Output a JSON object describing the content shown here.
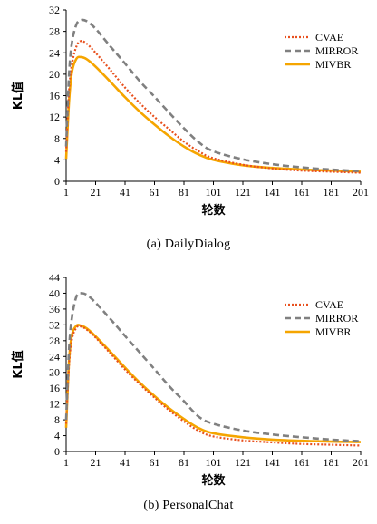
{
  "chart_data": [
    {
      "type": "line",
      "caption": "(a) DailyDialog",
      "xlabel": "轮数",
      "ylabel": "KL值",
      "x_ticks": [
        "1",
        "21",
        "41",
        "61",
        "81",
        "101",
        "121",
        "141",
        "161",
        "181",
        "201"
      ],
      "y_ticks": [
        "0",
        "4",
        "8",
        "12",
        "16",
        "20",
        "24",
        "28",
        "32"
      ],
      "xlim": [
        1,
        201
      ],
      "ylim": [
        0,
        32
      ],
      "legend_position": "top-right",
      "series": [
        {
          "name": "CVAE",
          "color": "#e8501e",
          "style": "dotted",
          "x": [
            1,
            3,
            5,
            8,
            11,
            15,
            21,
            31,
            41,
            51,
            61,
            71,
            81,
            91,
            101,
            121,
            141,
            161,
            181,
            201
          ],
          "y": [
            5.5,
            17,
            22,
            25.2,
            26.2,
            25.7,
            24,
            20.8,
            17.5,
            14.6,
            12,
            9.7,
            7.4,
            5.6,
            4.3,
            3.1,
            2.4,
            2.0,
            1.8,
            1.6
          ]
        },
        {
          "name": "MIRROR",
          "color": "#808080",
          "style": "dashed",
          "x": [
            1,
            3,
            5,
            8,
            11,
            15,
            21,
            31,
            41,
            51,
            61,
            71,
            81,
            91,
            101,
            121,
            141,
            161,
            181,
            201
          ],
          "y": [
            6.5,
            20,
            26,
            29.3,
            30.1,
            29.9,
            28.5,
            25.2,
            22,
            18.7,
            15.8,
            12.8,
            9.9,
            7.3,
            5.6,
            4.1,
            3.2,
            2.6,
            2.2,
            1.9
          ]
        },
        {
          "name": "MIVBR",
          "color": "#f5a500",
          "style": "solid",
          "x": [
            1,
            3,
            5,
            8,
            11,
            15,
            21,
            31,
            41,
            51,
            61,
            71,
            81,
            91,
            101,
            121,
            141,
            161,
            181,
            201
          ],
          "y": [
            4.2,
            15,
            20.5,
            22.9,
            23.2,
            22.8,
            21.4,
            18.6,
            15.7,
            13.0,
            10.6,
            8.4,
            6.5,
            5.0,
            4.0,
            3.0,
            2.5,
            2.2,
            2.0,
            1.8
          ]
        }
      ]
    },
    {
      "type": "line",
      "caption": "(b) PersonalChat",
      "xlabel": "轮数",
      "ylabel": "KL值",
      "x_ticks": [
        "1",
        "21",
        "41",
        "61",
        "81",
        "101",
        "121",
        "141",
        "161",
        "181",
        "201"
      ],
      "y_ticks": [
        "0",
        "4",
        "8",
        "12",
        "16",
        "20",
        "24",
        "28",
        "32",
        "36",
        "40",
        "44"
      ],
      "xlim": [
        1,
        201
      ],
      "ylim": [
        0,
        44
      ],
      "legend_position": "top-right",
      "series": [
        {
          "name": "CVAE",
          "color": "#e8501e",
          "style": "dotted",
          "x": [
            1,
            3,
            5,
            8,
            11,
            15,
            21,
            31,
            41,
            51,
            61,
            71,
            81,
            91,
            101,
            121,
            141,
            161,
            181,
            201
          ],
          "y": [
            7,
            22,
            28.5,
            31.3,
            31.6,
            30.8,
            28.8,
            24.8,
            20.7,
            17,
            13.6,
            10.4,
            7.6,
            5.2,
            3.8,
            2.8,
            2.3,
            1.9,
            1.7,
            1.5
          ]
        },
        {
          "name": "MIRROR",
          "color": "#808080",
          "style": "dashed",
          "x": [
            1,
            3,
            5,
            8,
            11,
            15,
            21,
            31,
            41,
            51,
            61,
            71,
            81,
            91,
            101,
            121,
            141,
            161,
            181,
            201
          ],
          "y": [
            8,
            26,
            34,
            39.2,
            40,
            39.6,
            37.6,
            33.5,
            29.2,
            25,
            20.8,
            16.5,
            12.7,
            8.8,
            7.0,
            5.3,
            4.3,
            3.6,
            3.0,
            2.6
          ]
        },
        {
          "name": "MIVBR",
          "color": "#f5a500",
          "style": "solid",
          "x": [
            1,
            3,
            5,
            8,
            11,
            15,
            21,
            31,
            41,
            51,
            61,
            71,
            81,
            91,
            101,
            121,
            141,
            161,
            181,
            201
          ],
          "y": [
            6,
            23,
            29.5,
            31.8,
            31.8,
            31.1,
            29.1,
            25.2,
            21.2,
            17.4,
            14,
            10.9,
            8.2,
            5.9,
            4.6,
            3.6,
            3.0,
            2.7,
            2.5,
            2.4
          ]
        }
      ]
    }
  ]
}
